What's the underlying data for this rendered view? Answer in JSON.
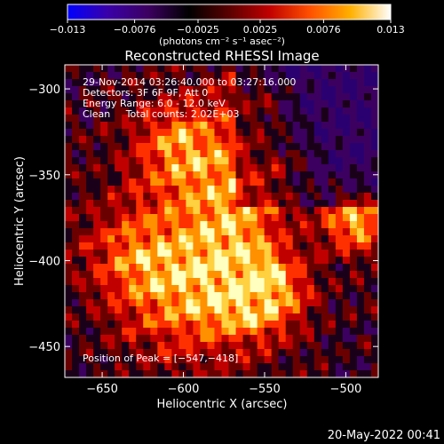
{
  "colorbar": {
    "min_label": "−0.013",
    "ticks": [
      "−0.013",
      "−0.0076",
      "−0.0025",
      "0.0025",
      "0.0076",
      "0.013"
    ],
    "tick_values": [
      -0.013,
      -0.0076,
      -0.0025,
      0.0025,
      0.0076,
      0.013
    ],
    "unit_label": "(photons cm⁻² s⁻¹ asec⁻²)",
    "colors": [
      "#0000ff",
      "#3a00a8",
      "#3c0060",
      "#000000",
      "#5a0000",
      "#c00000",
      "#ff5000",
      "#ffb000",
      "#ffffff"
    ]
  },
  "chart_data": {
    "type": "heatmap",
    "title": "Reconstructed RHESSI Image",
    "xlabel": "Heliocentric X (arcsec)",
    "ylabel": "Heliocentric Y (arcsec)",
    "xlim": [
      -673,
      -480
    ],
    "ylim": [
      -468,
      -286
    ],
    "x_ticks": [
      -650,
      -600,
      -550,
      -500
    ],
    "x_tick_labels": [
      "−650",
      "−600",
      "−550",
      "−500"
    ],
    "y_ticks": [
      -450,
      -400,
      -350,
      -300
    ],
    "y_tick_labels": [
      "−450",
      "−400",
      "−350",
      "−300"
    ],
    "value_range": [
      -0.013,
      0.013
    ],
    "peak_position": [
      -547,
      -418
    ],
    "annotations": [
      "29-Nov-2014 03:26:40.000 to 03:27:16.000",
      "Detectors: 3F 6F 9F, Att 0",
      "Energy Range: 6.0 - 12.0 keV",
      "Clean     Total counts: 2.02E+03"
    ],
    "peak_label": "Position of Peak = [−547,−418]"
  },
  "footer": {
    "timestamp": "20-May-2022 00:41"
  }
}
